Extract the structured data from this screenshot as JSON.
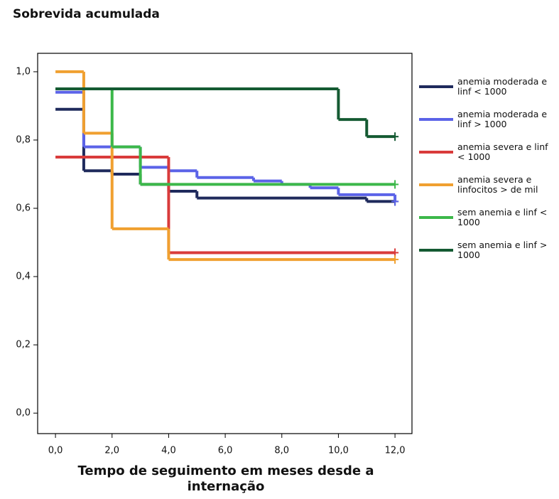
{
  "chart_data": {
    "type": "step",
    "title": "Sobrevida acumulada",
    "x_label": "Tempo de seguimento em meses desde a internação",
    "xlim": [
      -0.63,
      12.6
    ],
    "ylim": [
      -0.06,
      1.054
    ],
    "xticks": [
      {
        "value": 0,
        "label": "0,0"
      },
      {
        "value": 2,
        "label": "2,0"
      },
      {
        "value": 4,
        "label": "4,0"
      },
      {
        "value": 6,
        "label": "6,0"
      },
      {
        "value": 8,
        "label": "8,0"
      },
      {
        "value": 10,
        "label": "10,0"
      },
      {
        "value": 12,
        "label": "12,0"
      }
    ],
    "yticks": [
      {
        "value": 0,
        "label": "0,0"
      },
      {
        "value": 0.2,
        "label": "0,2"
      },
      {
        "value": 0.4,
        "label": "0,4"
      },
      {
        "value": 0.6,
        "label": "0,6"
      },
      {
        "value": 0.8,
        "label": "0,8"
      },
      {
        "value": 1,
        "label": "1,0"
      }
    ],
    "grid": false,
    "series": [
      {
        "name": "anemia moderada e linf < 1000",
        "color": "#1f2a5c",
        "x": [
          0,
          1,
          2,
          3,
          4,
          5,
          11,
          12
        ],
        "values": [
          0.89,
          0.71,
          0.7,
          0.67,
          0.65,
          0.63,
          0.62,
          0.62
        ]
      },
      {
        "name": "anemia moderada e linf > 1000",
        "color": "#5b63e8",
        "x": [
          0,
          1,
          3,
          4,
          5,
          7,
          8,
          9,
          10,
          12
        ],
        "values": [
          0.94,
          0.78,
          0.72,
          0.71,
          0.69,
          0.68,
          0.67,
          0.66,
          0.64,
          0.62
        ]
      },
      {
        "name": "anemia severa e linf < 1000",
        "color": "#d93b3b",
        "x": [
          0,
          4,
          12
        ],
        "values": [
          0.75,
          0.47,
          0.47
        ]
      },
      {
        "name": "anemia severa e linfocitos > de mil",
        "color": "#f0a030",
        "x": [
          0,
          1,
          2,
          4,
          12
        ],
        "values": [
          1.0,
          0.82,
          0.54,
          0.45,
          0.45
        ]
      },
      {
        "name": "sem anemia e linf < 1000",
        "color": "#3cb84a",
        "x": [
          0,
          2,
          3,
          12
        ],
        "values": [
          0.95,
          0.78,
          0.67,
          0.67
        ]
      },
      {
        "name": "sem anemia  e linf > 1000",
        "color": "#145a32",
        "x": [
          0,
          10,
          11,
          12
        ],
        "values": [
          0.95,
          0.86,
          0.81,
          0.81
        ]
      }
    ]
  }
}
